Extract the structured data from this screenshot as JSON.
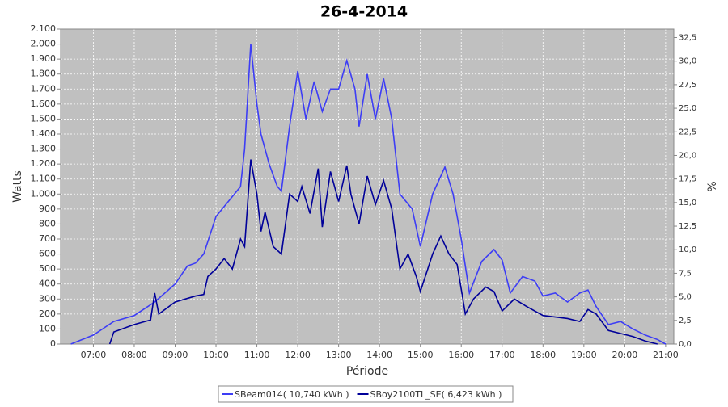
{
  "chart_data": {
    "type": "line",
    "title": "26-4-2014",
    "x_label": "Période",
    "y_label": "Watts",
    "y2_label": "%",
    "xlim": [
      6.2,
      21.2
    ],
    "xticks": [
      {
        "value": 7,
        "label": "07:00"
      },
      {
        "value": 8,
        "label": "08:00"
      },
      {
        "value": 9,
        "label": "09:00"
      },
      {
        "value": 10,
        "label": "10:00"
      },
      {
        "value": 11,
        "label": "11:00"
      },
      {
        "value": 12,
        "label": "12:00"
      },
      {
        "value": 13,
        "label": "13:00"
      },
      {
        "value": 14,
        "label": "14:00"
      },
      {
        "value": 15,
        "label": "15:00"
      },
      {
        "value": 16,
        "label": "16:00"
      },
      {
        "value": 17,
        "label": "17:00"
      },
      {
        "value": 18,
        "label": "18:00"
      },
      {
        "value": 19,
        "label": "19:00"
      },
      {
        "value": 20,
        "label": "20:00"
      },
      {
        "value": 21,
        "label": "21:00"
      }
    ],
    "ylim": [
      0,
      2100
    ],
    "yticks": [
      0,
      100,
      200,
      300,
      400,
      500,
      600,
      700,
      800,
      900,
      {
        "value": 1000,
        "label": "1.000"
      },
      {
        "value": 1100,
        "label": "1.100"
      },
      {
        "value": 1200,
        "label": "1.200"
      },
      {
        "value": 1300,
        "label": "1.300"
      },
      {
        "value": 1400,
        "label": "1.400"
      },
      {
        "value": 1500,
        "label": "1.500"
      },
      {
        "value": 1600,
        "label": "1.600"
      },
      {
        "value": 1700,
        "label": "1.700"
      },
      {
        "value": 1800,
        "label": "1.800"
      },
      {
        "value": 1900,
        "label": "1.900"
      },
      {
        "value": 2000,
        "label": "2.000"
      },
      {
        "value": 2100,
        "label": "2.100"
      }
    ],
    "y2lim": [
      0,
      33.4
    ],
    "y2ticks": [
      {
        "value": 0,
        "label": "0,0"
      },
      {
        "value": 2.5,
        "label": "2,5"
      },
      {
        "value": 5,
        "label": "5,0"
      },
      {
        "value": 7.5,
        "label": "7,5"
      },
      {
        "value": 10,
        "label": "10,0"
      },
      {
        "value": 12.5,
        "label": "12,5"
      },
      {
        "value": 15,
        "label": "15,0"
      },
      {
        "value": 17.5,
        "label": "17,5"
      },
      {
        "value": 20,
        "label": "20,0"
      },
      {
        "value": 22.5,
        "label": "22,5"
      },
      {
        "value": 25,
        "label": "25,0"
      },
      {
        "value": 27.5,
        "label": "27,5"
      },
      {
        "value": 30,
        "label": "30,0"
      },
      {
        "value": 32.5,
        "label": "32,5"
      }
    ],
    "grid": true,
    "legend": "bottom",
    "series": [
      {
        "name": "SBeam014( 10,740 kWh )",
        "color": "#3d3df5",
        "x": [
          6.45,
          7.0,
          7.5,
          8.0,
          8.5,
          9.0,
          9.3,
          9.5,
          9.7,
          10.0,
          10.3,
          10.6,
          10.7,
          10.85,
          11.0,
          11.1,
          11.3,
          11.5,
          11.6,
          11.8,
          12.0,
          12.2,
          12.4,
          12.6,
          12.8,
          13.0,
          13.2,
          13.4,
          13.5,
          13.7,
          13.9,
          14.1,
          14.3,
          14.5,
          14.8,
          15.0,
          15.3,
          15.6,
          15.8,
          16.0,
          16.2,
          16.5,
          16.8,
          17.0,
          17.2,
          17.5,
          17.8,
          18.0,
          18.3,
          18.6,
          18.9,
          19.1,
          19.3,
          19.6,
          19.9,
          20.2,
          20.5,
          20.8,
          21.0
        ],
        "values": [
          0,
          60,
          150,
          190,
          280,
          400,
          520,
          540,
          600,
          850,
          950,
          1050,
          1300,
          2000,
          1600,
          1400,
          1200,
          1050,
          1020,
          1450,
          1820,
          1500,
          1750,
          1550,
          1700,
          1700,
          1890,
          1700,
          1450,
          1800,
          1500,
          1770,
          1500,
          1000,
          900,
          650,
          1000,
          1180,
          1000,
          700,
          340,
          550,
          630,
          560,
          340,
          450,
          420,
          320,
          340,
          280,
          340,
          360,
          250,
          130,
          150,
          100,
          60,
          30,
          0
        ]
      },
      {
        "name": "SBoy2100TL_SE( 6,423 kWh )",
        "color": "#000099",
        "x": [
          7.4,
          7.5,
          8.0,
          8.4,
          8.5,
          8.6,
          9.0,
          9.5,
          9.7,
          9.8,
          10.0,
          10.2,
          10.4,
          10.6,
          10.7,
          10.85,
          11.0,
          11.1,
          11.2,
          11.4,
          11.6,
          11.8,
          12.0,
          12.1,
          12.3,
          12.5,
          12.6,
          12.8,
          13.0,
          13.2,
          13.3,
          13.5,
          13.7,
          13.9,
          14.1,
          14.3,
          14.5,
          14.7,
          14.9,
          15.0,
          15.3,
          15.5,
          15.7,
          15.9,
          16.1,
          16.3,
          16.6,
          16.8,
          17.0,
          17.3,
          17.6,
          18.0,
          18.3,
          18.6,
          18.9,
          19.1,
          19.3,
          19.6,
          19.9,
          20.2,
          20.5,
          20.8
        ],
        "values": [
          0,
          80,
          130,
          160,
          340,
          200,
          280,
          320,
          330,
          450,
          500,
          570,
          500,
          700,
          650,
          1230,
          1000,
          750,
          880,
          650,
          600,
          1000,
          950,
          1050,
          870,
          1170,
          780,
          1150,
          950,
          1190,
          1000,
          800,
          1120,
          930,
          1090,
          900,
          500,
          600,
          450,
          350,
          600,
          720,
          600,
          530,
          200,
          300,
          380,
          350,
          220,
          300,
          250,
          190,
          180,
          170,
          150,
          230,
          200,
          90,
          70,
          50,
          20,
          0
        ]
      }
    ]
  }
}
